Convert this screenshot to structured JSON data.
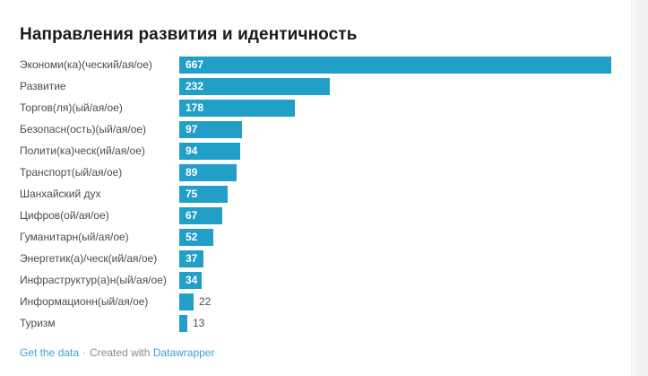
{
  "chart_data": {
    "type": "bar",
    "orientation": "horizontal",
    "title": "Направления развития и идентичность",
    "categories": [
      "Экономи(ка)(ческий/ая/ое)",
      "Развитие",
      "Торгов(ля)(ый/ая/ое)",
      "Безопасн(ость)(ый/ая/ое)",
      "Полити(ка)ческ(ий/ая/ое)",
      "Транспорт(ый/ая/ое)",
      "Шанхайский дух",
      "Цифров(ой/ая/ое)",
      "Гуманитарн(ый/ая/ое)",
      "Энергетик(а)/ческ(ий/ая/ое)",
      "Инфраструктур(а)н(ый/ая/ое)",
      "Информационн(ый/ая/ое)",
      "Туризм"
    ],
    "values": [
      667,
      232,
      178,
      97,
      94,
      89,
      75,
      67,
      52,
      37,
      34,
      22,
      13
    ],
    "xlim": [
      0,
      667
    ],
    "grid": "off",
    "legend": "none",
    "value_label_style": "inside bars in white bold; outside in gray for smallest bars"
  },
  "colors": {
    "bar": "#219fc7",
    "link": "#3ba2c9",
    "title_text": "#1a1a1a",
    "label_text": "#4c4c4c",
    "credit_text": "#8a8a8a"
  },
  "footer": {
    "get_data_label": "Get the data",
    "separator": "·",
    "created_with": "Created with",
    "brand": "Datawrapper"
  }
}
